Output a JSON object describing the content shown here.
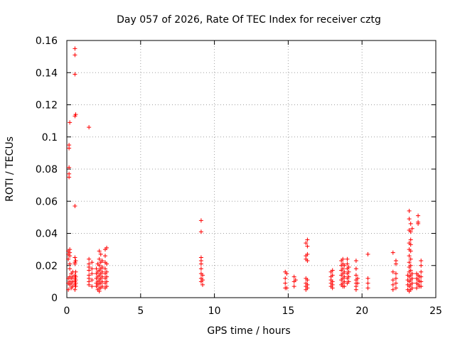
{
  "chart_data": {
    "type": "scatter",
    "title": "Day 057 of 2026, Rate Of TEC Index for receiver cztg",
    "xlabel": "GPS time / hours",
    "ylabel": "ROTI / TECUs",
    "xlim": [
      0,
      25
    ],
    "ylim": [
      0,
      0.16
    ],
    "xticks": [
      0,
      5,
      10,
      15,
      20,
      25
    ],
    "xtick_labels": [
      "0",
      "5",
      "10",
      "15",
      "20",
      "25"
    ],
    "yticks": [
      0,
      0.02,
      0.04,
      0.06,
      0.08,
      0.1,
      0.12,
      0.14,
      0.16
    ],
    "ytick_labels": [
      "0",
      "0.02",
      "0.04",
      "0.06",
      "0.08",
      "0.1",
      "0.12",
      "0.14",
      "0.16"
    ],
    "grid": true,
    "marker": "plus",
    "color": "#ff0000",
    "series": [
      {
        "name": "ROTI",
        "points": [
          [
            0.1,
            0.029
          ],
          [
            0.1,
            0.027
          ],
          [
            0.1,
            0.024
          ],
          [
            0.1,
            0.012
          ],
          [
            0.1,
            0.009
          ],
          [
            0.1,
            0.005
          ],
          [
            0.15,
            0.095
          ],
          [
            0.15,
            0.093
          ],
          [
            0.15,
            0.081
          ],
          [
            0.15,
            0.077
          ],
          [
            0.15,
            0.075
          ],
          [
            0.2,
            0.109
          ],
          [
            0.2,
            0.03
          ],
          [
            0.2,
            0.028
          ],
          [
            0.2,
            0.026
          ],
          [
            0.2,
            0.021
          ],
          [
            0.2,
            0.018
          ],
          [
            0.2,
            0.013
          ],
          [
            0.2,
            0.01
          ],
          [
            0.2,
            0.008
          ],
          [
            0.3,
            0.015
          ],
          [
            0.3,
            0.012
          ],
          [
            0.3,
            0.009
          ],
          [
            0.3,
            0.006
          ],
          [
            0.4,
            0.016
          ],
          [
            0.4,
            0.013
          ],
          [
            0.4,
            0.01
          ],
          [
            0.4,
            0.007
          ],
          [
            0.55,
            0.155
          ],
          [
            0.55,
            0.151
          ],
          [
            0.55,
            0.139
          ],
          [
            0.55,
            0.113
          ],
          [
            0.55,
            0.057
          ],
          [
            0.55,
            0.025
          ],
          [
            0.55,
            0.022
          ],
          [
            0.55,
            0.021
          ],
          [
            0.55,
            0.014
          ],
          [
            0.55,
            0.012
          ],
          [
            0.55,
            0.01
          ],
          [
            0.55,
            0.008
          ],
          [
            0.55,
            0.005
          ],
          [
            0.6,
            0.114
          ],
          [
            0.6,
            0.023
          ],
          [
            0.6,
            0.016
          ],
          [
            0.6,
            0.013
          ],
          [
            0.6,
            0.011
          ],
          [
            0.6,
            0.009
          ],
          [
            0.6,
            0.007
          ],
          [
            1.5,
            0.106
          ],
          [
            1.5,
            0.024
          ],
          [
            1.5,
            0.021
          ],
          [
            1.5,
            0.019
          ],
          [
            1.5,
            0.017
          ],
          [
            1.5,
            0.014
          ],
          [
            1.5,
            0.012
          ],
          [
            1.5,
            0.01
          ],
          [
            1.5,
            0.008
          ],
          [
            1.7,
            0.022
          ],
          [
            1.7,
            0.018
          ],
          [
            1.7,
            0.015
          ],
          [
            1.7,
            0.011
          ],
          [
            1.7,
            0.007
          ],
          [
            2.0,
            0.018
          ],
          [
            2.0,
            0.015
          ],
          [
            2.0,
            0.012
          ],
          [
            2.0,
            0.009
          ],
          [
            2.0,
            0.007
          ],
          [
            2.1,
            0.021
          ],
          [
            2.1,
            0.016
          ],
          [
            2.1,
            0.013
          ],
          [
            2.1,
            0.01
          ],
          [
            2.1,
            0.008
          ],
          [
            2.1,
            0.005
          ],
          [
            2.2,
            0.029
          ],
          [
            2.2,
            0.024
          ],
          [
            2.2,
            0.02
          ],
          [
            2.2,
            0.017
          ],
          [
            2.2,
            0.014
          ],
          [
            2.2,
            0.011
          ],
          [
            2.2,
            0.009
          ],
          [
            2.2,
            0.006
          ],
          [
            2.2,
            0.004
          ],
          [
            2.3,
            0.027
          ],
          [
            2.3,
            0.022
          ],
          [
            2.3,
            0.018
          ],
          [
            2.3,
            0.015
          ],
          [
            2.3,
            0.012
          ],
          [
            2.3,
            0.009
          ],
          [
            2.3,
            0.006
          ],
          [
            2.4,
            0.023
          ],
          [
            2.4,
            0.019
          ],
          [
            2.4,
            0.016
          ],
          [
            2.4,
            0.013
          ],
          [
            2.4,
            0.01
          ],
          [
            2.4,
            0.007
          ],
          [
            2.6,
            0.03
          ],
          [
            2.6,
            0.026
          ],
          [
            2.6,
            0.022
          ],
          [
            2.6,
            0.018
          ],
          [
            2.6,
            0.015
          ],
          [
            2.6,
            0.012
          ],
          [
            2.6,
            0.009
          ],
          [
            2.6,
            0.006
          ],
          [
            2.7,
            0.031
          ],
          [
            2.7,
            0.021
          ],
          [
            2.7,
            0.016
          ],
          [
            2.7,
            0.013
          ],
          [
            2.7,
            0.01
          ],
          [
            2.7,
            0.007
          ],
          [
            9.1,
            0.048
          ],
          [
            9.1,
            0.041
          ],
          [
            9.1,
            0.025
          ],
          [
            9.1,
            0.023
          ],
          [
            9.1,
            0.021
          ],
          [
            9.1,
            0.018
          ],
          [
            9.1,
            0.015
          ],
          [
            9.1,
            0.012
          ],
          [
            9.1,
            0.01
          ],
          [
            9.2,
            0.014
          ],
          [
            9.2,
            0.011
          ],
          [
            9.2,
            0.008
          ],
          [
            14.8,
            0.016
          ],
          [
            14.8,
            0.012
          ],
          [
            14.8,
            0.009
          ],
          [
            14.8,
            0.006
          ],
          [
            14.9,
            0.015
          ],
          [
            14.9,
            0.006
          ],
          [
            15.4,
            0.013
          ],
          [
            15.4,
            0.01
          ],
          [
            15.4,
            0.007
          ],
          [
            15.5,
            0.011
          ],
          [
            16.2,
            0.034
          ],
          [
            16.2,
            0.026
          ],
          [
            16.2,
            0.024
          ],
          [
            16.2,
            0.012
          ],
          [
            16.2,
            0.009
          ],
          [
            16.2,
            0.007
          ],
          [
            16.2,
            0.005
          ],
          [
            16.3,
            0.036
          ],
          [
            16.3,
            0.032
          ],
          [
            16.3,
            0.027
          ],
          [
            16.3,
            0.023
          ],
          [
            16.3,
            0.011
          ],
          [
            16.3,
            0.008
          ],
          [
            16.3,
            0.006
          ],
          [
            17.9,
            0.016
          ],
          [
            17.9,
            0.013
          ],
          [
            17.9,
            0.011
          ],
          [
            17.9,
            0.009
          ],
          [
            17.9,
            0.007
          ],
          [
            18.0,
            0.017
          ],
          [
            18.0,
            0.014
          ],
          [
            18.0,
            0.01
          ],
          [
            18.0,
            0.008
          ],
          [
            18.0,
            0.006
          ],
          [
            18.6,
            0.023
          ],
          [
            18.6,
            0.02
          ],
          [
            18.6,
            0.017
          ],
          [
            18.6,
            0.014
          ],
          [
            18.6,
            0.011
          ],
          [
            18.6,
            0.008
          ],
          [
            18.7,
            0.024
          ],
          [
            18.7,
            0.021
          ],
          [
            18.7,
            0.018
          ],
          [
            18.7,
            0.015
          ],
          [
            18.7,
            0.012
          ],
          [
            18.7,
            0.009
          ],
          [
            18.7,
            0.007
          ],
          [
            18.8,
            0.02
          ],
          [
            18.8,
            0.016
          ],
          [
            18.8,
            0.013
          ],
          [
            18.8,
            0.01
          ],
          [
            18.8,
            0.007
          ],
          [
            19.0,
            0.024
          ],
          [
            19.0,
            0.021
          ],
          [
            19.0,
            0.018
          ],
          [
            19.0,
            0.015
          ],
          [
            19.0,
            0.012
          ],
          [
            19.0,
            0.009
          ],
          [
            19.1,
            0.019
          ],
          [
            19.1,
            0.016
          ],
          [
            19.1,
            0.013
          ],
          [
            19.1,
            0.01
          ],
          [
            19.6,
            0.023
          ],
          [
            19.6,
            0.018
          ],
          [
            19.6,
            0.014
          ],
          [
            19.6,
            0.011
          ],
          [
            19.6,
            0.009
          ],
          [
            19.6,
            0.007
          ],
          [
            19.6,
            0.005
          ],
          [
            19.7,
            0.012
          ],
          [
            19.7,
            0.009
          ],
          [
            20.4,
            0.027
          ],
          [
            20.4,
            0.012
          ],
          [
            20.4,
            0.009
          ],
          [
            20.4,
            0.006
          ],
          [
            22.1,
            0.028
          ],
          [
            22.1,
            0.016
          ],
          [
            22.1,
            0.011
          ],
          [
            22.1,
            0.008
          ],
          [
            22.1,
            0.005
          ],
          [
            22.3,
            0.023
          ],
          [
            22.3,
            0.021
          ],
          [
            22.3,
            0.015
          ],
          [
            22.3,
            0.012
          ],
          [
            22.3,
            0.009
          ],
          [
            22.3,
            0.006
          ],
          [
            23.1,
            0.014
          ],
          [
            23.1,
            0.011
          ],
          [
            23.1,
            0.008
          ],
          [
            23.1,
            0.005
          ],
          [
            23.2,
            0.054
          ],
          [
            23.2,
            0.049
          ],
          [
            23.2,
            0.042
          ],
          [
            23.2,
            0.034
          ],
          [
            23.2,
            0.03
          ],
          [
            23.2,
            0.026
          ],
          [
            23.2,
            0.022
          ],
          [
            23.2,
            0.019
          ],
          [
            23.2,
            0.016
          ],
          [
            23.2,
            0.013
          ],
          [
            23.2,
            0.01
          ],
          [
            23.2,
            0.007
          ],
          [
            23.2,
            0.004
          ],
          [
            23.3,
            0.046
          ],
          [
            23.3,
            0.041
          ],
          [
            23.3,
            0.036
          ],
          [
            23.3,
            0.033
          ],
          [
            23.3,
            0.029
          ],
          [
            23.3,
            0.024
          ],
          [
            23.3,
            0.02
          ],
          [
            23.3,
            0.017
          ],
          [
            23.3,
            0.014
          ],
          [
            23.3,
            0.011
          ],
          [
            23.3,
            0.008
          ],
          [
            23.3,
            0.005
          ],
          [
            23.4,
            0.043
          ],
          [
            23.4,
            0.015
          ],
          [
            23.4,
            0.012
          ],
          [
            23.4,
            0.009
          ],
          [
            23.4,
            0.006
          ],
          [
            23.7,
            0.015
          ],
          [
            23.7,
            0.012
          ],
          [
            23.7,
            0.009
          ],
          [
            23.7,
            0.006
          ],
          [
            23.8,
            0.051
          ],
          [
            23.8,
            0.047
          ],
          [
            23.8,
            0.046
          ],
          [
            23.8,
            0.014
          ],
          [
            23.8,
            0.011
          ],
          [
            23.8,
            0.008
          ],
          [
            23.9,
            0.013
          ],
          [
            23.9,
            0.01
          ],
          [
            23.9,
            0.007
          ],
          [
            24.0,
            0.023
          ],
          [
            24.0,
            0.02
          ],
          [
            24.0,
            0.016
          ],
          [
            24.0,
            0.013
          ],
          [
            24.0,
            0.01
          ],
          [
            24.0,
            0.007
          ]
        ]
      }
    ]
  }
}
